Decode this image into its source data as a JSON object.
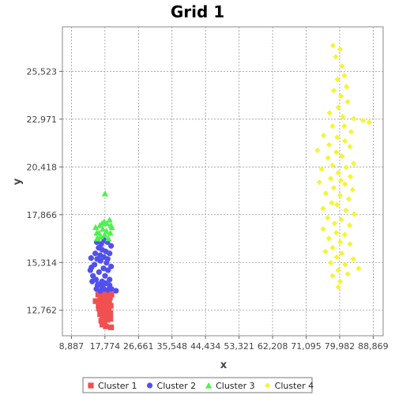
{
  "chart_data": {
    "type": "scatter",
    "title": "Grid 1",
    "xlabel": "x",
    "ylabel": "y",
    "xlim": [
      6500,
      91500
    ],
    "ylim": [
      11400,
      27900
    ],
    "x_ticks": [
      8887,
      17774,
      26661,
      35548,
      44434,
      53321,
      62208,
      71095,
      79982,
      88869
    ],
    "x_tick_labels": [
      "8,887",
      "17,774",
      "26,661",
      "35,548",
      "44,434",
      "53,321",
      "62,208",
      "71,095",
      "79,982",
      "88,869"
    ],
    "y_ticks": [
      12762,
      15314,
      17866,
      20418,
      22971,
      25523
    ],
    "y_tick_labels": [
      "12,762",
      "15,314",
      "17,866",
      "20,418",
      "22,971",
      "25,523"
    ],
    "grid": true,
    "legend_position": "bottom",
    "series": [
      {
        "name": "Cluster 1",
        "color": "#f05050",
        "marker": "square",
        "points": [
          [
            16000,
            13600
          ],
          [
            16600,
            13450
          ],
          [
            17100,
            13700
          ],
          [
            17600,
            13350
          ],
          [
            18100,
            13550
          ],
          [
            18600,
            13650
          ],
          [
            19100,
            13450
          ],
          [
            19500,
            13600
          ],
          [
            16300,
            13250
          ],
          [
            16900,
            13050
          ],
          [
            17400,
            13150
          ],
          [
            17900,
            12950
          ],
          [
            18400,
            13100
          ],
          [
            18900,
            13200
          ],
          [
            19300,
            13000
          ],
          [
            16200,
            12850
          ],
          [
            16800,
            12700
          ],
          [
            17300,
            12800
          ],
          [
            17800,
            12650
          ],
          [
            18300,
            12750
          ],
          [
            18800,
            12850
          ],
          [
            19200,
            12600
          ],
          [
            16500,
            12550
          ],
          [
            17200,
            12450
          ],
          [
            17700,
            12350
          ],
          [
            18200,
            12500
          ],
          [
            18700,
            12400
          ],
          [
            16800,
            12200
          ],
          [
            17600,
            12150
          ],
          [
            18400,
            12250
          ],
          [
            19200,
            12300
          ],
          [
            17100,
            12000
          ],
          [
            18000,
            11900
          ],
          [
            19400,
            11850
          ],
          [
            15300,
            13250
          ],
          [
            16100,
            13000
          ],
          [
            17300,
            12600
          ]
        ]
      },
      {
        "name": "Cluster 2",
        "color": "#5050f0",
        "marker": "circle",
        "points": [
          [
            13900,
            14900
          ],
          [
            14200,
            15050
          ],
          [
            14600,
            14600
          ],
          [
            15000,
            15200
          ],
          [
            15400,
            14400
          ],
          [
            15800,
            14100
          ],
          [
            16200,
            14800
          ],
          [
            16600,
            15400
          ],
          [
            17000,
            14300
          ],
          [
            17400,
            15000
          ],
          [
            17800,
            14600
          ],
          [
            18200,
            15300
          ],
          [
            18600,
            14900
          ],
          [
            19000,
            14400
          ],
          [
            19400,
            15100
          ],
          [
            15200,
            15800
          ],
          [
            15700,
            15500
          ],
          [
            16100,
            16100
          ],
          [
            16500,
            15700
          ],
          [
            17000,
            16000
          ],
          [
            17500,
            15600
          ],
          [
            18000,
            15900
          ],
          [
            18500,
            15500
          ],
          [
            19000,
            15800
          ],
          [
            19400,
            16200
          ],
          [
            15500,
            13900
          ],
          [
            16000,
            14150
          ],
          [
            16500,
            13800
          ],
          [
            17000,
            14050
          ],
          [
            17500,
            13900
          ],
          [
            18000,
            14200
          ],
          [
            18500,
            13850
          ],
          [
            19000,
            14100
          ],
          [
            19500,
            13900
          ],
          [
            16800,
            16300
          ],
          [
            17600,
            16500
          ],
          [
            18400,
            16400
          ],
          [
            15600,
            16400
          ],
          [
            20700,
            13800
          ],
          [
            14400,
            14300
          ],
          [
            14100,
            15550
          ]
        ]
      },
      {
        "name": "Cluster 3",
        "color": "#50f050",
        "marker": "triangle",
        "points": [
          [
            15700,
            16600
          ],
          [
            16200,
            16900
          ],
          [
            16700,
            16700
          ],
          [
            17200,
            17100
          ],
          [
            17700,
            16800
          ],
          [
            18200,
            17000
          ],
          [
            18700,
            16600
          ],
          [
            19200,
            16900
          ],
          [
            19600,
            17200
          ],
          [
            15300,
            17200
          ],
          [
            15900,
            16600
          ],
          [
            17000,
            17400
          ],
          [
            17600,
            17500
          ],
          [
            18300,
            17400
          ],
          [
            19000,
            17600
          ],
          [
            19400,
            17300
          ],
          [
            16400,
            17300
          ],
          [
            15600,
            16900
          ],
          [
            17800,
            19000
          ]
        ]
      },
      {
        "name": "Cluster 4",
        "color": "#f5f530",
        "marker": "diamond",
        "points": [
          [
            78200,
            26900
          ],
          [
            78900,
            26300
          ],
          [
            80100,
            26700
          ],
          [
            80600,
            25800
          ],
          [
            81200,
            25300
          ],
          [
            79400,
            25100
          ],
          [
            81800,
            24700
          ],
          [
            80300,
            24200
          ],
          [
            78400,
            24500
          ],
          [
            82100,
            23900
          ],
          [
            79600,
            23600
          ],
          [
            77300,
            23300
          ],
          [
            80800,
            23100
          ],
          [
            83700,
            23000
          ],
          [
            86200,
            22900
          ],
          [
            78100,
            22600
          ],
          [
            81200,
            22600
          ],
          [
            83000,
            22300
          ],
          [
            75700,
            22100
          ],
          [
            79300,
            22000
          ],
          [
            81400,
            21800
          ],
          [
            77200,
            21600
          ],
          [
            82700,
            21500
          ],
          [
            74100,
            21300
          ],
          [
            79100,
            21200
          ],
          [
            80600,
            21000
          ],
          [
            76900,
            20900
          ],
          [
            83700,
            20600
          ],
          [
            78100,
            20500
          ],
          [
            81700,
            20400
          ],
          [
            75200,
            20300
          ],
          [
            79600,
            20100
          ],
          [
            82800,
            19900
          ],
          [
            77600,
            19800
          ],
          [
            80300,
            19700
          ],
          [
            74600,
            19600
          ],
          [
            81400,
            19500
          ],
          [
            78400,
            19300
          ],
          [
            83400,
            19200
          ],
          [
            76300,
            19000
          ],
          [
            80100,
            18900
          ],
          [
            82400,
            18700
          ],
          [
            77900,
            18500
          ],
          [
            79300,
            18400
          ],
          [
            75600,
            18200
          ],
          [
            81600,
            18100
          ],
          [
            83800,
            17900
          ],
          [
            76800,
            17700
          ],
          [
            80400,
            17600
          ],
          [
            78600,
            17400
          ],
          [
            82600,
            17300
          ],
          [
            75600,
            17100
          ],
          [
            79100,
            16900
          ],
          [
            81300,
            16800
          ],
          [
            77100,
            16600
          ],
          [
            80100,
            16400
          ],
          [
            82700,
            16300
          ],
          [
            78100,
            16100
          ],
          [
            76200,
            15900
          ],
          [
            80600,
            15800
          ],
          [
            79200,
            15600
          ],
          [
            83600,
            15500
          ],
          [
            77600,
            15300
          ],
          [
            81400,
            15200
          ],
          [
            79600,
            14900
          ],
          [
            85000,
            15000
          ],
          [
            78100,
            14600
          ],
          [
            82100,
            14700
          ],
          [
            80100,
            14300
          ],
          [
            79600,
            14000
          ],
          [
            87800,
            22800
          ]
        ]
      }
    ]
  }
}
